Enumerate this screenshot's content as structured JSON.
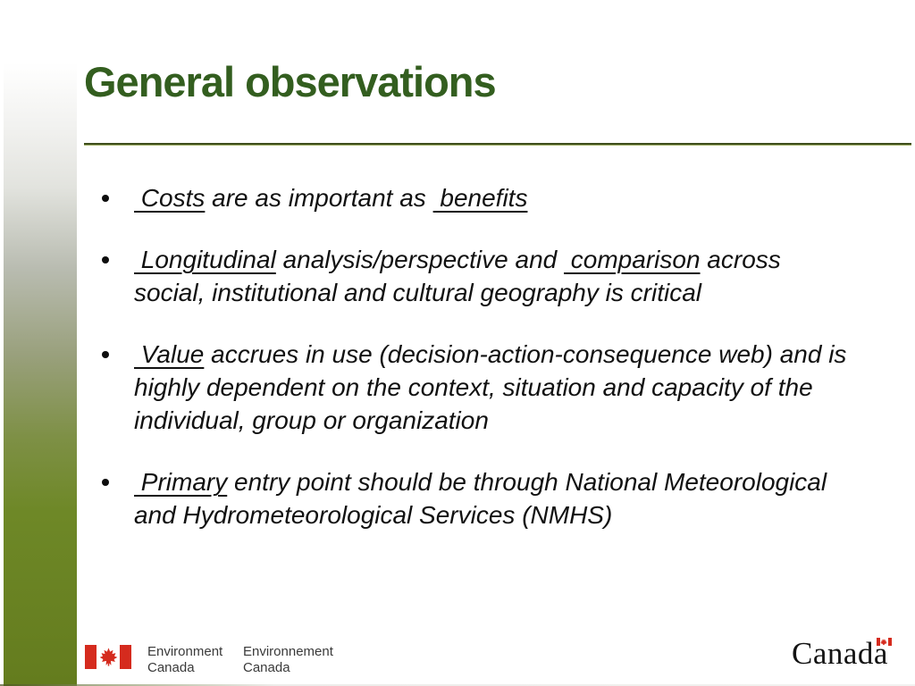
{
  "slide": {
    "title": "General observations",
    "colors": {
      "title_green": "#335e1f",
      "rule_dark": "#3e4e1d",
      "rule_light": "#9fae65",
      "body_text": "#111111",
      "sidebar_olive": "#647c1e",
      "flag_red": "#d52b1e",
      "footer_text": "#3a3a3a",
      "wordmark_black": "#141414"
    },
    "icons": {
      "bullet": "bullet-dot-icon",
      "flag": "canada-flag-icon",
      "maple_leaf": "maple-leaf-icon",
      "wordmark_flag": "wordmark-flag-icon"
    }
  },
  "bullets": [
    {
      "runs": [
        {
          "text": " Costs",
          "underline": true
        },
        {
          "text": " are as important as ",
          "underline": false
        },
        {
          "text": " benefits",
          "underline": true
        }
      ]
    },
    {
      "runs": [
        {
          "text": " Longitudinal",
          "underline": true
        },
        {
          "text": " analysis/perspective and ",
          "underline": false
        },
        {
          "text": " comparison",
          "underline": true
        },
        {
          "text": " across\nsocial, institutional and cultural geography is critical",
          "underline": false
        }
      ]
    },
    {
      "runs": [
        {
          "text": " Value",
          "underline": true
        },
        {
          "text": " accrues in use (decision-action-consequence web) and is\nhighly dependent on the context, situation and capacity of the\nindividual, group or organization",
          "underline": false
        }
      ]
    },
    {
      "runs": [
        {
          "text": " Primary",
          "underline": true
        },
        {
          "text": " entry point should be through National Meteorological\nand Hydrometeorological Services (NMHS)",
          "underline": false
        }
      ]
    }
  ],
  "footer": {
    "dept_en_line1": "Environment",
    "dept_en_line2": "Canada",
    "dept_fr_line1": "Environnement",
    "dept_fr_line2": "Canada",
    "wordmark": "Canada"
  }
}
